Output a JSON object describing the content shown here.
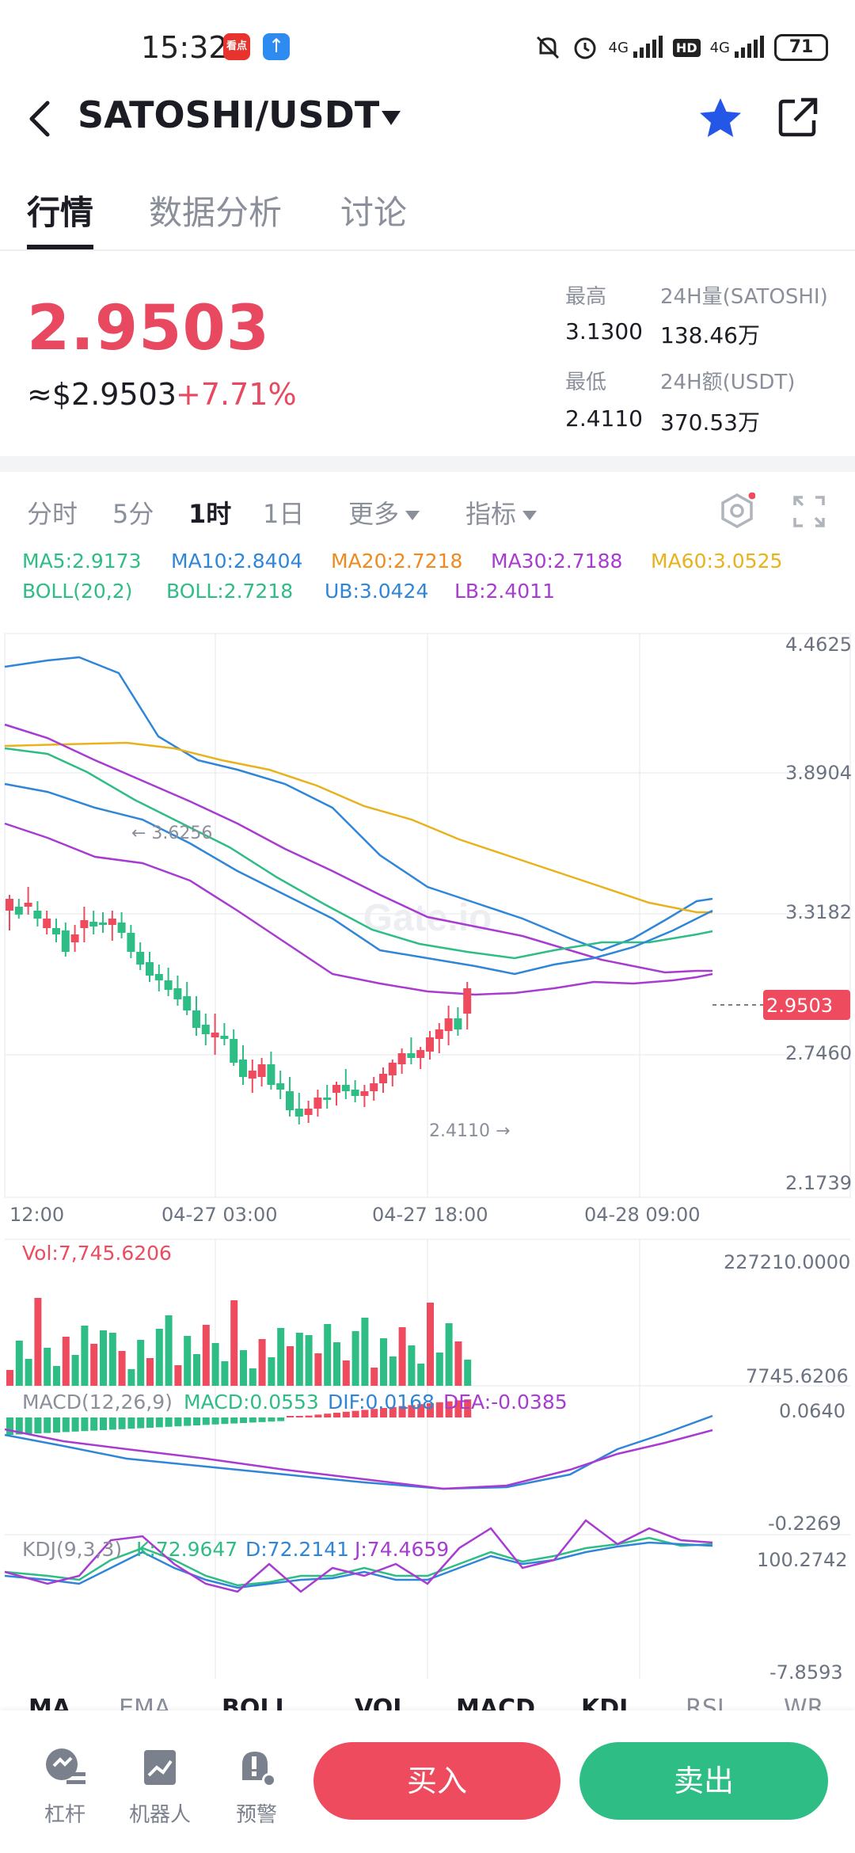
{
  "status_bar": {
    "time": "15:32",
    "app1": "看点",
    "net1": "4G",
    "hd": "HD",
    "net2": "4G",
    "battery": "71"
  },
  "header": {
    "pair": "SATOSHI/USDT"
  },
  "tabs": [
    {
      "label": "行情"
    },
    {
      "label": "数据分析"
    },
    {
      "label": "讨论"
    }
  ],
  "price": {
    "last": "2.9503",
    "usd": "≈$2.9503",
    "change": "+7.71%"
  },
  "stats": {
    "high_label": "最高",
    "high": "3.1300",
    "low_label": "最低",
    "low": "2.4110",
    "vol_label": "24H量(SATOSHI)",
    "vol": "138.46万",
    "amt_label": "24H额(USDT)",
    "amt": "370.53万"
  },
  "timeframes": [
    "分时",
    "5分",
    "1时",
    "1日",
    "更多",
    "指标"
  ],
  "ma_legend": {
    "ma5": "MA5:2.9173",
    "ma10": "MA10:2.8404",
    "ma20": "MA20:2.7218",
    "ma30": "MA30:2.7188",
    "ma60": "MA60:3.0525",
    "boll": "BOLL(20,2)",
    "boll_val": "BOLL:2.7218",
    "ub": "UB:3.0424",
    "lb": "LB:2.4011"
  },
  "colors": {
    "up": "#2ebd85",
    "down": "#ee4b5e",
    "ma5": "#2ebd85",
    "ma10": "#2f86d8",
    "ma20": "#f08a1e",
    "ma30": "#a83bd1",
    "ma60": "#e8b21c"
  },
  "chart_data": {
    "type": "candlestick",
    "y_ticks": [
      "4.4625",
      "3.8904",
      "3.3182",
      "2.7460",
      "2.1739"
    ],
    "x_ticks": [
      "12:00",
      "04-27 03:00",
      "04-27 18:00",
      "04-28 09:00"
    ],
    "last_price_tag": "2.9503",
    "high_annotation": "← 3.6256",
    "low_annotation": "2.4110 →",
    "ylim": [
      2.1739,
      4.4625
    ]
  },
  "volume": {
    "label": "Vol:7,745.6206",
    "max": "227210.0000",
    "min": "7745.6206"
  },
  "macd": {
    "label": "MACD(12,26,9)",
    "macd": "MACD:0.0553",
    "dif": "DIF:0.0168",
    "dea": "DEA:-0.0385",
    "max": "0.0640",
    "min": "-0.2269"
  },
  "kdj": {
    "label": "KDJ(9,3,3)",
    "k": "K:72.9647",
    "d": "D:72.2141",
    "j": "J:74.4659",
    "max": "100.2742",
    "min": "-7.8593"
  },
  "indicator_strip": [
    "MA",
    "EMA",
    "BOLL",
    "VOL",
    "MACD",
    "KDJ",
    "RSI",
    "WR"
  ],
  "bottom": {
    "lever": "杠杆",
    "robot": "机器人",
    "alert": "预警",
    "buy": "买入",
    "sell": "卖出"
  }
}
